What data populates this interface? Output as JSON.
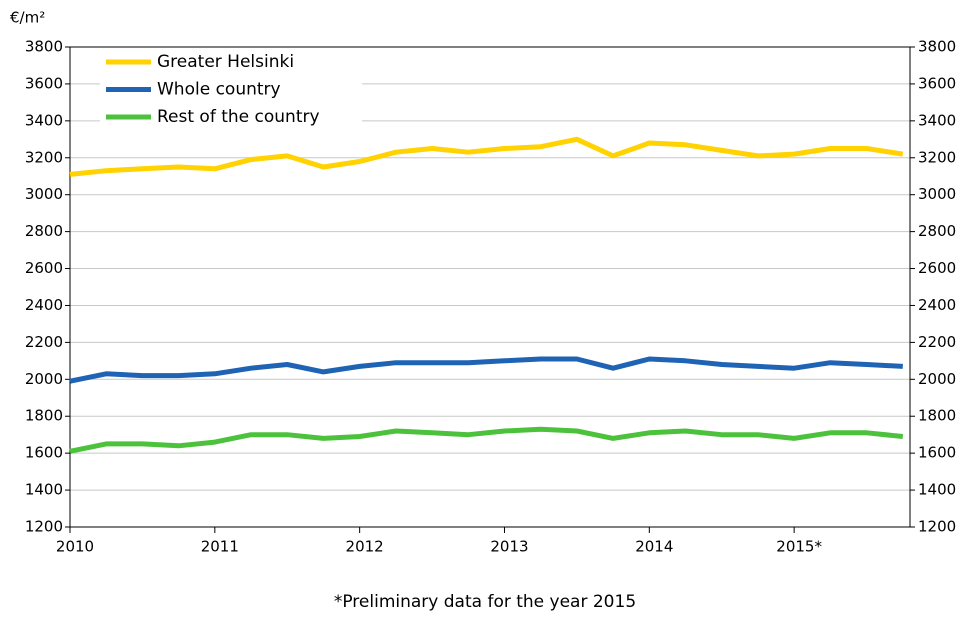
{
  "chart_data": {
    "type": "line",
    "unit_label": "€/m²",
    "footnote": "*Preliminary data for the year 2015",
    "x": [
      2010,
      2010.25,
      2010.5,
      2010.75,
      2011,
      2011.25,
      2011.5,
      2011.75,
      2012,
      2012.25,
      2012.5,
      2012.75,
      2013,
      2013.25,
      2013.5,
      2013.75,
      2014,
      2014.25,
      2014.5,
      2014.75,
      2015,
      2015.25,
      2015.5,
      2015.75
    ],
    "series": [
      {
        "name": "Greater Helsinki",
        "color": "#ffd200",
        "values": [
          3110,
          3130,
          3140,
          3150,
          3140,
          3190,
          3210,
          3150,
          3180,
          3230,
          3250,
          3230,
          3250,
          3260,
          3300,
          3210,
          3280,
          3270,
          3240,
          3210,
          3220,
          3250,
          3250,
          3220
        ]
      },
      {
        "name": "Whole country",
        "color": "#1f63b5",
        "values": [
          1990,
          2030,
          2020,
          2020,
          2030,
          2060,
          2080,
          2040,
          2070,
          2090,
          2090,
          2090,
          2100,
          2110,
          2110,
          2060,
          2110,
          2100,
          2080,
          2070,
          2060,
          2090,
          2080,
          2070
        ]
      },
      {
        "name": "Rest of the country",
        "color": "#4cc23c",
        "values": [
          1610,
          1650,
          1650,
          1640,
          1660,
          1700,
          1700,
          1680,
          1690,
          1720,
          1710,
          1700,
          1720,
          1730,
          1720,
          1680,
          1710,
          1720,
          1700,
          1700,
          1680,
          1710,
          1710,
          1690
        ]
      }
    ],
    "xlim": [
      2010,
      2015.8
    ],
    "xticks": [
      2010,
      2011,
      2012,
      2013,
      2014,
      {
        "value": 2015,
        "label": "2015*"
      }
    ],
    "ylim": [
      1200,
      3800
    ],
    "yticks": [
      1200,
      1400,
      1600,
      1800,
      2000,
      2200,
      2400,
      2600,
      2800,
      3000,
      3200,
      3400,
      3600,
      3800
    ],
    "grid": true,
    "legend": "top-left"
  }
}
